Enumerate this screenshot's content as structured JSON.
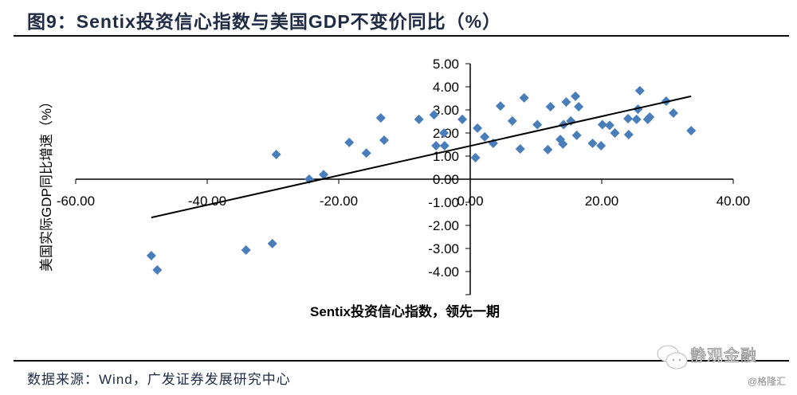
{
  "chart_data": {
    "type": "scatter",
    "title": "图9：Sentix投资信心指数与美国GDP不变价同比（%）",
    "xlabel": "Sentix投资信心指数，领先一期",
    "ylabel": "美国实际GDP同比增速（%）",
    "xlim": [
      -60,
      40
    ],
    "ylim": [
      -5,
      5
    ],
    "x_ticks": [
      "-60.00",
      "-40.00",
      "-20.00",
      "0.00",
      "20.00",
      "40.00"
    ],
    "y_ticks": [
      "5.00",
      "4.00",
      "3.00",
      "2.00",
      "1.00",
      "0.00",
      "-1.00",
      "-2.00",
      "-3.00",
      "-4.00"
    ],
    "x_tick_values": [
      -60,
      -40,
      -20,
      0,
      20,
      40
    ],
    "y_tick_values": [
      5,
      4,
      3,
      2,
      1,
      0,
      -1,
      -2,
      -3,
      -4
    ],
    "grid": false,
    "marker_color": "#4a7ebb",
    "points": [
      [
        -48.5,
        -3.31
      ],
      [
        -47.6,
        -3.93
      ],
      [
        -34.1,
        -3.07
      ],
      [
        -30.1,
        -2.79
      ],
      [
        -29.5,
        1.07
      ],
      [
        -24.5,
        0.0
      ],
      [
        -22.3,
        0.2
      ],
      [
        -18.4,
        1.59
      ],
      [
        -15.8,
        1.13
      ],
      [
        -13.6,
        2.65
      ],
      [
        -13.1,
        1.69
      ],
      [
        -7.8,
        2.59
      ],
      [
        -5.5,
        2.79
      ],
      [
        -5.2,
        1.45
      ],
      [
        -4.0,
        2.0
      ],
      [
        -3.9,
        1.45
      ],
      [
        -1.2,
        2.59
      ],
      [
        0.8,
        0.93
      ],
      [
        1.1,
        2.21
      ],
      [
        2.2,
        1.83
      ],
      [
        3.5,
        1.55
      ],
      [
        4.6,
        3.17
      ],
      [
        6.4,
        2.52
      ],
      [
        7.6,
        1.31
      ],
      [
        8.2,
        3.52
      ],
      [
        10.2,
        2.36
      ],
      [
        11.8,
        1.28
      ],
      [
        12.2,
        3.14
      ],
      [
        13.7,
        1.72
      ],
      [
        14.1,
        1.52
      ],
      [
        14.2,
        2.36
      ],
      [
        14.6,
        3.34
      ],
      [
        15.3,
        2.52
      ],
      [
        16.0,
        3.59
      ],
      [
        16.2,
        1.9
      ],
      [
        16.5,
        3.14
      ],
      [
        18.6,
        1.55
      ],
      [
        19.9,
        1.45
      ],
      [
        20.1,
        2.36
      ],
      [
        21.2,
        2.33
      ],
      [
        22.0,
        2.0
      ],
      [
        24.0,
        2.62
      ],
      [
        24.1,
        1.93
      ],
      [
        25.3,
        2.59
      ],
      [
        25.5,
        3.03
      ],
      [
        25.8,
        3.83
      ],
      [
        27.0,
        2.59
      ],
      [
        27.3,
        2.69
      ],
      [
        29.8,
        3.38
      ],
      [
        30.9,
        2.86
      ],
      [
        33.6,
        2.1
      ]
    ],
    "trendline": {
      "type": "linear",
      "from": [
        -48.5,
        -1.66
      ],
      "to": [
        33.6,
        3.59
      ],
      "color": "#000000"
    }
  },
  "footer": {
    "source": "数据来源：Wind，广发证券发展研究中心",
    "watermark": "静观金融",
    "credit": "@格隆汇"
  }
}
